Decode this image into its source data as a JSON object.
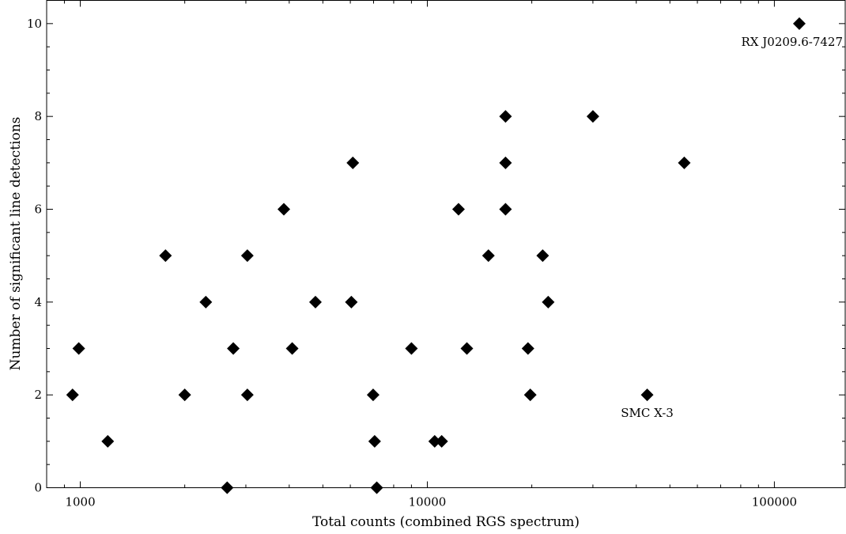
{
  "chart_data": {
    "type": "scatter",
    "xscale": "log",
    "xlim": [
      800,
      160000
    ],
    "ylim": [
      0,
      10.5
    ],
    "xlabel": "Total counts (combined RGS spectrum)",
    "ylabel": "Number of significant line detections",
    "x_ticks": [
      {
        "value": 1000,
        "label": "1000"
      },
      {
        "value": 10000,
        "label": "10000"
      },
      {
        "value": 100000,
        "label": "100000"
      }
    ],
    "y_ticks": [
      {
        "value": 0,
        "label": "0"
      },
      {
        "value": 2,
        "label": "2"
      },
      {
        "value": 4,
        "label": "4"
      },
      {
        "value": 6,
        "label": "6"
      },
      {
        "value": 8,
        "label": "8"
      },
      {
        "value": 10,
        "label": "10"
      }
    ],
    "marker": "diamond",
    "marker_color": "#000000",
    "grid": false,
    "points": [
      {
        "x": 950,
        "y": 2
      },
      {
        "x": 990,
        "y": 3
      },
      {
        "x": 1200,
        "y": 1
      },
      {
        "x": 1760,
        "y": 5
      },
      {
        "x": 2000,
        "y": 2
      },
      {
        "x": 2300,
        "y": 4
      },
      {
        "x": 2650,
        "y": 0
      },
      {
        "x": 2760,
        "y": 3
      },
      {
        "x": 3030,
        "y": 2
      },
      {
        "x": 3030,
        "y": 5
      },
      {
        "x": 3860,
        "y": 6
      },
      {
        "x": 4080,
        "y": 3
      },
      {
        "x": 4760,
        "y": 4
      },
      {
        "x": 6040,
        "y": 4
      },
      {
        "x": 6100,
        "y": 7
      },
      {
        "x": 6980,
        "y": 2
      },
      {
        "x": 7050,
        "y": 1
      },
      {
        "x": 7150,
        "y": 0
      },
      {
        "x": 9000,
        "y": 3
      },
      {
        "x": 10500,
        "y": 1
      },
      {
        "x": 11000,
        "y": 1
      },
      {
        "x": 12300,
        "y": 6
      },
      {
        "x": 13000,
        "y": 3
      },
      {
        "x": 15000,
        "y": 5
      },
      {
        "x": 16800,
        "y": 8
      },
      {
        "x": 16800,
        "y": 7
      },
      {
        "x": 16800,
        "y": 6
      },
      {
        "x": 19500,
        "y": 3
      },
      {
        "x": 19800,
        "y": 2
      },
      {
        "x": 21500,
        "y": 5
      },
      {
        "x": 22300,
        "y": 4
      },
      {
        "x": 30000,
        "y": 8
      },
      {
        "x": 43000,
        "y": 2,
        "label": "SMC X-3"
      },
      {
        "x": 55000,
        "y": 7
      },
      {
        "x": 118000,
        "y": 10,
        "label": "RX J0209.6-7427"
      }
    ]
  }
}
